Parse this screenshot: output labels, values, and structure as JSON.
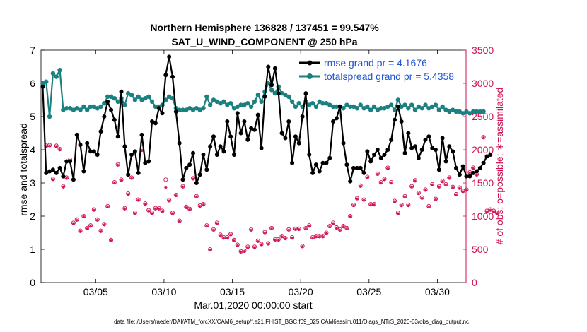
{
  "colors": {
    "rmse": "#000000",
    "spread": "#1a8080",
    "obs": "#d01050",
    "legend_text": "#1f55d6"
  },
  "chart_data": {
    "type": "line",
    "title": "Northern Hemisphere 136828 / 137451 = 99.547%",
    "subtitle": "SAT_U_WIND_COMPONENT @ 250 hPa",
    "xlabel": "Mar.01,2020 00:00:00 start",
    "ylabel": "rmse and totalspread",
    "y2label": "# of obs: o=possible; ∗=assimilated",
    "footer": "data file: /Users/raeder/DAI/ATM_forcXX/CAM6_setup/f.e21.FHIST_BGC.f09_025.CAM6assim.011/Diags_NTrS_2020-03/obs_diag_output.nc",
    "xlim": [
      1,
      32.1
    ],
    "ylim": [
      0,
      7
    ],
    "y2lim": [
      0,
      3500
    ],
    "x_ticks": [
      {
        "x": 5,
        "label": "03/05"
      },
      {
        "x": 10,
        "label": "03/10"
      },
      {
        "x": 15,
        "label": "03/15"
      },
      {
        "x": 20,
        "label": "03/20"
      },
      {
        "x": 25,
        "label": "03/25"
      },
      {
        "x": 30,
        "label": "03/30"
      }
    ],
    "y_ticks": [
      "0",
      "1",
      "2",
      "3",
      "4",
      "5",
      "6",
      "7"
    ],
    "y2_ticks": [
      "0",
      "500",
      "1000",
      "1500",
      "2000",
      "2500",
      "3000",
      "3500"
    ],
    "legend": {
      "position": "top-right",
      "entries": [
        "rmse grand pr = 4.1676",
        "totalspread grand pr = 5.4358"
      ]
    },
    "x_start": 1.125,
    "x_step": 0.25,
    "series": [
      {
        "name": "rmse",
        "values": [
          5.9,
          3.3,
          3.35,
          3.4,
          3.3,
          3.45,
          3.2,
          3.65,
          3.65,
          3.1,
          4.45,
          4.15,
          3.35,
          4.2,
          3.95,
          3.95,
          3.85,
          4.55,
          5.0,
          5.45,
          5.2,
          4.9,
          4.4,
          5.75,
          4.1,
          3.25,
          3.85,
          3.95,
          3.3,
          4.45,
          3.6,
          3.65,
          4.85,
          4.8,
          5.25,
          5.1,
          6.25,
          6.8,
          6.2,
          5.15,
          4.2,
          3.1,
          3.45,
          3.55,
          3.9,
          3.0,
          3.25,
          3.85,
          3.4,
          4.1,
          4.4,
          3.85,
          4.1,
          3.95,
          4.85,
          4.4,
          3.85,
          5.1,
          4.5,
          4.85,
          4.3,
          4.65,
          4.6,
          5.05,
          4.05,
          5.6,
          6.5,
          5.95,
          6.45,
          5.7,
          4.5,
          4.35,
          4.85,
          3.6,
          4.4,
          4.2,
          5.0,
          5.7,
          3.85,
          3.3,
          3.55,
          3.35,
          3.6,
          3.6,
          3.75,
          4.85,
          4.95,
          5.3,
          4.2,
          3.55,
          3.05,
          3.45,
          3.45,
          3.45,
          3.3,
          3.95,
          3.65,
          3.85,
          4.0,
          3.75,
          3.85,
          4.0,
          4.3,
          4.9,
          5.3,
          4.85,
          3.9,
          4.5,
          4.05,
          4.1,
          3.75,
          4.0,
          4.3,
          4.4,
          4.05,
          4.0,
          3.4,
          4.35,
          3.65,
          4.1,
          3.95,
          3.45,
          3.25,
          3.5,
          3.2,
          3.2,
          3.3,
          3.35,
          3.45,
          3.6,
          3.8,
          3.85
        ]
      },
      {
        "name": "totalspread",
        "values": [
          6.0,
          6.05,
          5.0,
          6.3,
          6.2,
          6.4,
          5.2,
          5.25,
          5.25,
          5.2,
          5.25,
          5.2,
          5.3,
          5.2,
          5.3,
          5.3,
          5.25,
          5.3,
          5.4,
          5.6,
          5.6,
          5.55,
          5.45,
          5.55,
          5.35,
          5.7,
          5.65,
          5.5,
          5.6,
          5.5,
          5.55,
          5.6,
          5.45,
          5.3,
          5.3,
          5.35,
          5.5,
          5.6,
          5.55,
          5.25,
          5.2,
          5.2,
          5.2,
          5.25,
          5.2,
          5.25,
          5.2,
          5.25,
          5.6,
          5.35,
          5.5,
          5.45,
          5.4,
          5.45,
          5.35,
          5.4,
          5.25,
          5.3,
          5.35,
          5.35,
          5.4,
          5.3,
          5.45,
          5.65,
          5.45,
          5.75,
          6.0,
          5.8,
          5.7,
          5.9,
          5.7,
          5.65,
          5.6,
          5.45,
          5.3,
          5.4,
          5.3,
          5.45,
          5.35,
          5.4,
          5.3,
          5.45,
          5.4,
          5.4,
          5.35,
          5.3,
          5.3,
          5.3,
          5.25,
          5.35,
          5.3,
          5.3,
          5.25,
          5.35,
          5.25,
          5.3,
          5.2,
          5.3,
          5.2,
          5.25,
          5.25,
          5.3,
          5.35,
          5.2,
          5.5,
          5.3,
          5.35,
          5.25,
          5.35,
          5.2,
          5.3,
          5.25,
          5.35,
          5.25,
          5.3,
          5.35,
          5.2,
          5.3,
          5.2,
          5.15,
          5.2,
          5.15,
          5.15,
          5.1,
          5.15,
          5.1,
          5.15,
          5.15,
          5.15,
          5.15
        ]
      },
      {
        "name": "obs_possible",
        "values": [
          2950,
          2060,
          2070,
          1560,
          2060,
          2010,
          1450,
          1580,
          1850,
          900,
          950,
          780,
          1000,
          820,
          860,
          1100,
          950,
          780,
          880,
          1150,
          640,
          1510,
          1780,
          1550,
          1120,
          1340,
          1580,
          1050,
          1250,
          2000,
          1190,
          1090,
          1050,
          1120,
          1120,
          1080,
          1550,
          1240,
          1050,
          1320,
          930,
          1450,
          1140,
          1110,
          1570,
          1300,
          1160,
          1180,
          860,
          500,
          800,
          900,
          720,
          680,
          680,
          730,
          640,
          570,
          470,
          480,
          540,
          800,
          540,
          630,
          580,
          760,
          590,
          820,
          650,
          650,
          700,
          670,
          800,
          680,
          810,
          810,
          550,
          820,
          860,
          680,
          700,
          700,
          700,
          750,
          850,
          900,
          830,
          800,
          850,
          820,
          1000,
          1170,
          1270,
          1460,
          1250,
          1590,
          1180,
          1180,
          1640,
          1510,
          1560,
          1730,
          1510,
          1230,
          1050,
          1170,
          1300,
          1170,
          1450,
          1540,
          1350,
          1280,
          1400,
          1150,
          1480,
          1260,
          1450,
          1530,
          1480,
          1580,
          1440,
          1330,
          1430,
          1380,
          1400,
          1660,
          1730,
          1630,
          2560,
          2190,
          1080,
          1100,
          1080,
          1050
        ]
      },
      {
        "name": "obs_assimilated",
        "values": [
          2940,
          2050,
          2060,
          1550,
          2050,
          2000,
          1440,
          1570,
          1840,
          890,
          940,
          770,
          990,
          810,
          850,
          1090,
          940,
          770,
          870,
          1140,
          630,
          1500,
          1770,
          1540,
          1110,
          1330,
          1570,
          1040,
          1240,
          1990,
          1180,
          1080,
          1040,
          1110,
          1110,
          1070,
          1430,
          1230,
          1040,
          1310,
          920,
          1440,
          1130,
          1100,
          1560,
          1290,
          1150,
          1170,
          850,
          490,
          790,
          890,
          710,
          670,
          670,
          720,
          630,
          560,
          460,
          470,
          530,
          790,
          530,
          620,
          570,
          750,
          580,
          810,
          640,
          640,
          690,
          660,
          790,
          670,
          800,
          800,
          540,
          810,
          850,
          670,
          690,
          690,
          690,
          740,
          840,
          890,
          820,
          790,
          840,
          810,
          990,
          1160,
          1260,
          1450,
          1240,
          1580,
          1170,
          1170,
          1630,
          1500,
          1550,
          1720,
          1500,
          1220,
          1040,
          1160,
          1290,
          1160,
          1440,
          1530,
          1340,
          1270,
          1390,
          1140,
          1470,
          1250,
          1440,
          1520,
          1470,
          1570,
          1430,
          1320,
          1420,
          1370,
          1390,
          1650,
          1720,
          1620,
          2550,
          2180,
          1070,
          1090,
          1070,
          1040
        ]
      }
    ]
  }
}
